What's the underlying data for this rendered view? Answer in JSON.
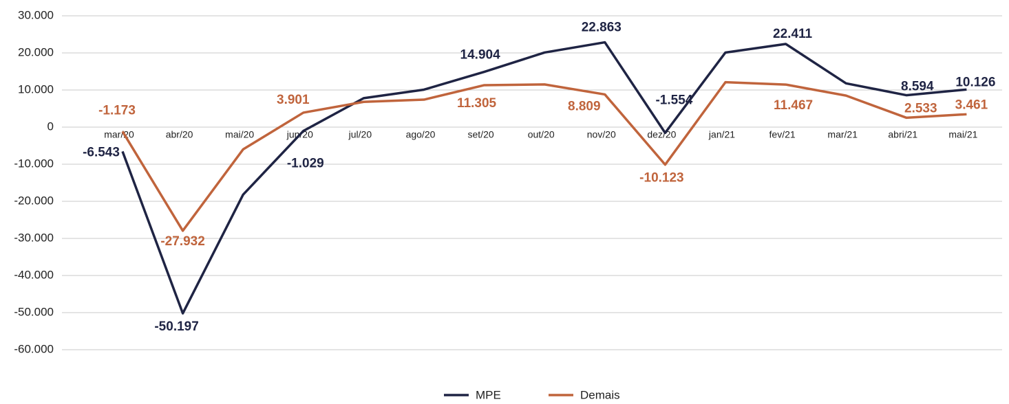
{
  "chart_data": {
    "type": "line",
    "categories": [
      "mar/20",
      "abr/20",
      "mai/20",
      "jun/20",
      "jul/20",
      "ago/20",
      "set/20",
      "out/20",
      "nov/20",
      "dez/20",
      "jan/21",
      "fev/21",
      "mar/21",
      "abri/21",
      "mai/21"
    ],
    "series": [
      {
        "name": "MPE",
        "color": "#1f2444",
        "values": [
          -6543,
          -50197,
          -18200,
          -1029,
          7800,
          10100,
          14904,
          20100,
          22863,
          -1554,
          20100,
          22411,
          11800,
          8594,
          10126
        ],
        "value_labels": [
          "-6.543",
          "-50.197",
          null,
          "-1.029",
          null,
          null,
          "14.904",
          null,
          "22.863",
          "-1.554",
          null,
          "22.411",
          null,
          "8.594",
          "10.126"
        ]
      },
      {
        "name": "Demais",
        "color": "#c0643c",
        "values": [
          -1173,
          -27932,
          -6000,
          3901,
          6800,
          7400,
          11305,
          11500,
          8809,
          -10123,
          12100,
          11467,
          8500,
          2533,
          3461
        ],
        "value_labels": [
          "-1.173",
          "-27.932",
          null,
          "3.901",
          null,
          null,
          "11.305",
          null,
          "8.809",
          "-10.123",
          null,
          "11.467",
          null,
          "2.533",
          "3.461"
        ]
      }
    ],
    "ylim": [
      -60000,
      30000
    ],
    "yticks": [
      {
        "value": 30000,
        "label": "30.000"
      },
      {
        "value": 20000,
        "label": "20.000"
      },
      {
        "value": 10000,
        "label": "10.000"
      },
      0,
      {
        "value": -10000,
        "label": "-10.000"
      },
      {
        "value": -20000,
        "label": "-20.000"
      },
      {
        "value": -30000,
        "label": "-30.000"
      },
      {
        "value": -40000,
        "label": "-40.000"
      },
      {
        "value": -50000,
        "label": "-50.000"
      },
      {
        "value": -60000,
        "label": "-60.000"
      }
    ],
    "grid": true,
    "legend": "bottom"
  }
}
